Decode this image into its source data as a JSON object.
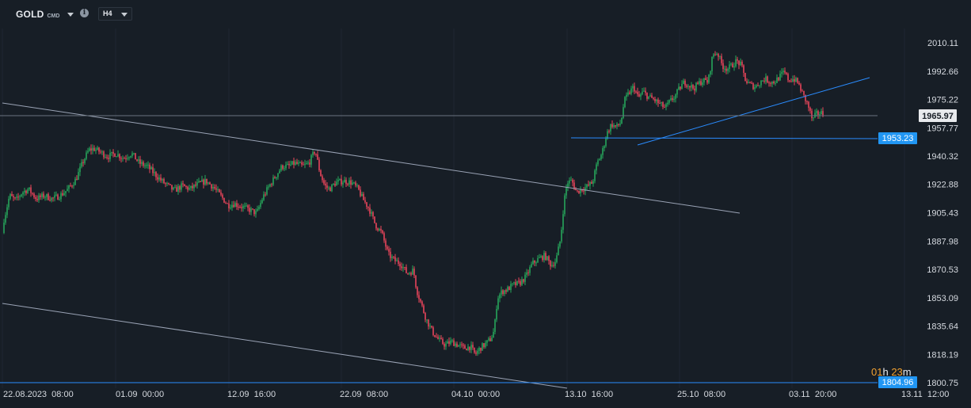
{
  "toolbar": {
    "symbol": "GOLD",
    "exchange": "CMD",
    "timeframe": "H4",
    "info_icon": "info-icon"
  },
  "countdown": {
    "hours": "01",
    "h_unit": "h",
    "minutes": "23",
    "m_unit": "m"
  },
  "chart_data": {
    "type": "candlestick",
    "ylim": [
      1800,
      2014
    ],
    "y_ticks": [
      "2010.11",
      "1992.66",
      "1975.22",
      "1957.77",
      "1940.32",
      "1922.88",
      "1905.43",
      "1887.98",
      "1870.53",
      "1853.09",
      "1835.64",
      "1818.19",
      "1800.75"
    ],
    "x_ticks": [
      "22.08.2023  08:00",
      "01.09  00:00",
      "12.09  16:00",
      "22.09  08:00",
      "04.10  00:00",
      "13.10  16:00",
      "25.10  08:00",
      "03.11  20:00",
      "13.11  12:00"
    ],
    "last_price": 1965.97,
    "horizontal_levels": [
      1953.23,
      1804.96
    ],
    "colors": {
      "up": "#26a65b",
      "down": "#e8455a",
      "trendline": "#9aa3b5",
      "level": "#2a8cff",
      "badge": "#2196f3"
    },
    "price_path": [
      [
        0,
        1893
      ],
      [
        6,
        1903
      ],
      [
        12,
        1916
      ],
      [
        20,
        1913
      ],
      [
        28,
        1918
      ],
      [
        36,
        1920
      ],
      [
        46,
        1914
      ],
      [
        56,
        1916
      ],
      [
        66,
        1914
      ],
      [
        76,
        1916
      ],
      [
        86,
        1920
      ],
      [
        96,
        1926
      ],
      [
        104,
        1936
      ],
      [
        112,
        1944
      ],
      [
        118,
        1945
      ],
      [
        126,
        1943
      ],
      [
        136,
        1940
      ],
      [
        146,
        1942
      ],
      [
        156,
        1939
      ],
      [
        166,
        1942
      ],
      [
        176,
        1936
      ],
      [
        186,
        1934
      ],
      [
        196,
        1929
      ],
      [
        204,
        1925
      ],
      [
        212,
        1922
      ],
      [
        220,
        1919
      ],
      [
        230,
        1922
      ],
      [
        240,
        1920
      ],
      [
        250,
        1923
      ],
      [
        260,
        1925
      ],
      [
        270,
        1921
      ],
      [
        280,
        1915
      ],
      [
        288,
        1910
      ],
      [
        296,
        1911
      ],
      [
        306,
        1909
      ],
      [
        316,
        1907
      ],
      [
        324,
        1905
      ],
      [
        332,
        1915
      ],
      [
        340,
        1922
      ],
      [
        348,
        1928
      ],
      [
        356,
        1934
      ],
      [
        364,
        1934
      ],
      [
        372,
        1936
      ],
      [
        382,
        1934
      ],
      [
        390,
        1936
      ],
      [
        398,
        1944
      ],
      [
        404,
        1930
      ],
      [
        410,
        1922
      ],
      [
        416,
        1920
      ],
      [
        424,
        1924
      ],
      [
        434,
        1925
      ],
      [
        444,
        1924
      ],
      [
        452,
        1920
      ],
      [
        458,
        1914
      ],
      [
        466,
        1908
      ],
      [
        474,
        1898
      ],
      [
        482,
        1893
      ],
      [
        490,
        1880
      ],
      [
        498,
        1876
      ],
      [
        506,
        1874
      ],
      [
        514,
        1868
      ],
      [
        522,
        1870
      ],
      [
        526,
        1858
      ],
      [
        532,
        1849
      ],
      [
        538,
        1840
      ],
      [
        546,
        1832
      ],
      [
        554,
        1827
      ],
      [
        562,
        1824
      ],
      [
        570,
        1826
      ],
      [
        578,
        1824
      ],
      [
        586,
        1822
      ],
      [
        594,
        1823
      ],
      [
        600,
        1818
      ],
      [
        606,
        1822
      ],
      [
        614,
        1825
      ],
      [
        620,
        1828
      ],
      [
        624,
        1833
      ],
      [
        628,
        1853
      ],
      [
        634,
        1857
      ],
      [
        640,
        1858
      ],
      [
        648,
        1861
      ],
      [
        656,
        1862
      ],
      [
        664,
        1866
      ],
      [
        672,
        1874
      ],
      [
        680,
        1877
      ],
      [
        688,
        1879
      ],
      [
        696,
        1873
      ],
      [
        702,
        1876
      ],
      [
        708,
        1890
      ],
      [
        712,
        1912
      ],
      [
        716,
        1924
      ],
      [
        722,
        1925
      ],
      [
        728,
        1918
      ],
      [
        734,
        1920
      ],
      [
        740,
        1921
      ],
      [
        748,
        1924
      ],
      [
        754,
        1936
      ],
      [
        760,
        1942
      ],
      [
        766,
        1954
      ],
      [
        772,
        1960
      ],
      [
        778,
        1958
      ],
      [
        784,
        1961
      ],
      [
        788,
        1974
      ],
      [
        794,
        1979
      ],
      [
        800,
        1983
      ],
      [
        806,
        1976
      ],
      [
        812,
        1980
      ],
      [
        818,
        1977
      ],
      [
        826,
        1975
      ],
      [
        834,
        1972
      ],
      [
        840,
        1970
      ],
      [
        846,
        1974
      ],
      [
        852,
        1977
      ],
      [
        858,
        1982
      ],
      [
        864,
        1986
      ],
      [
        870,
        1984
      ],
      [
        876,
        1982
      ],
      [
        882,
        1985
      ],
      [
        888,
        1987
      ],
      [
        894,
        1986
      ],
      [
        900,
        2003
      ],
      [
        906,
        2004
      ],
      [
        912,
        1996
      ],
      [
        918,
        1994
      ],
      [
        924,
        1996
      ],
      [
        930,
        1999
      ],
      [
        936,
        1996
      ],
      [
        942,
        1986
      ],
      [
        948,
        1984
      ],
      [
        954,
        1983
      ],
      [
        960,
        1986
      ],
      [
        966,
        1988
      ],
      [
        972,
        1986
      ],
      [
        978,
        1986
      ],
      [
        984,
        1989
      ],
      [
        990,
        1992
      ],
      [
        996,
        1987
      ],
      [
        1002,
        1988
      ],
      [
        1008,
        1985
      ],
      [
        1014,
        1978
      ],
      [
        1020,
        1972
      ],
      [
        1026,
        1962
      ],
      [
        1030,
        1966
      ],
      [
        1036,
        1967
      ],
      [
        1040,
        1966
      ]
    ]
  }
}
